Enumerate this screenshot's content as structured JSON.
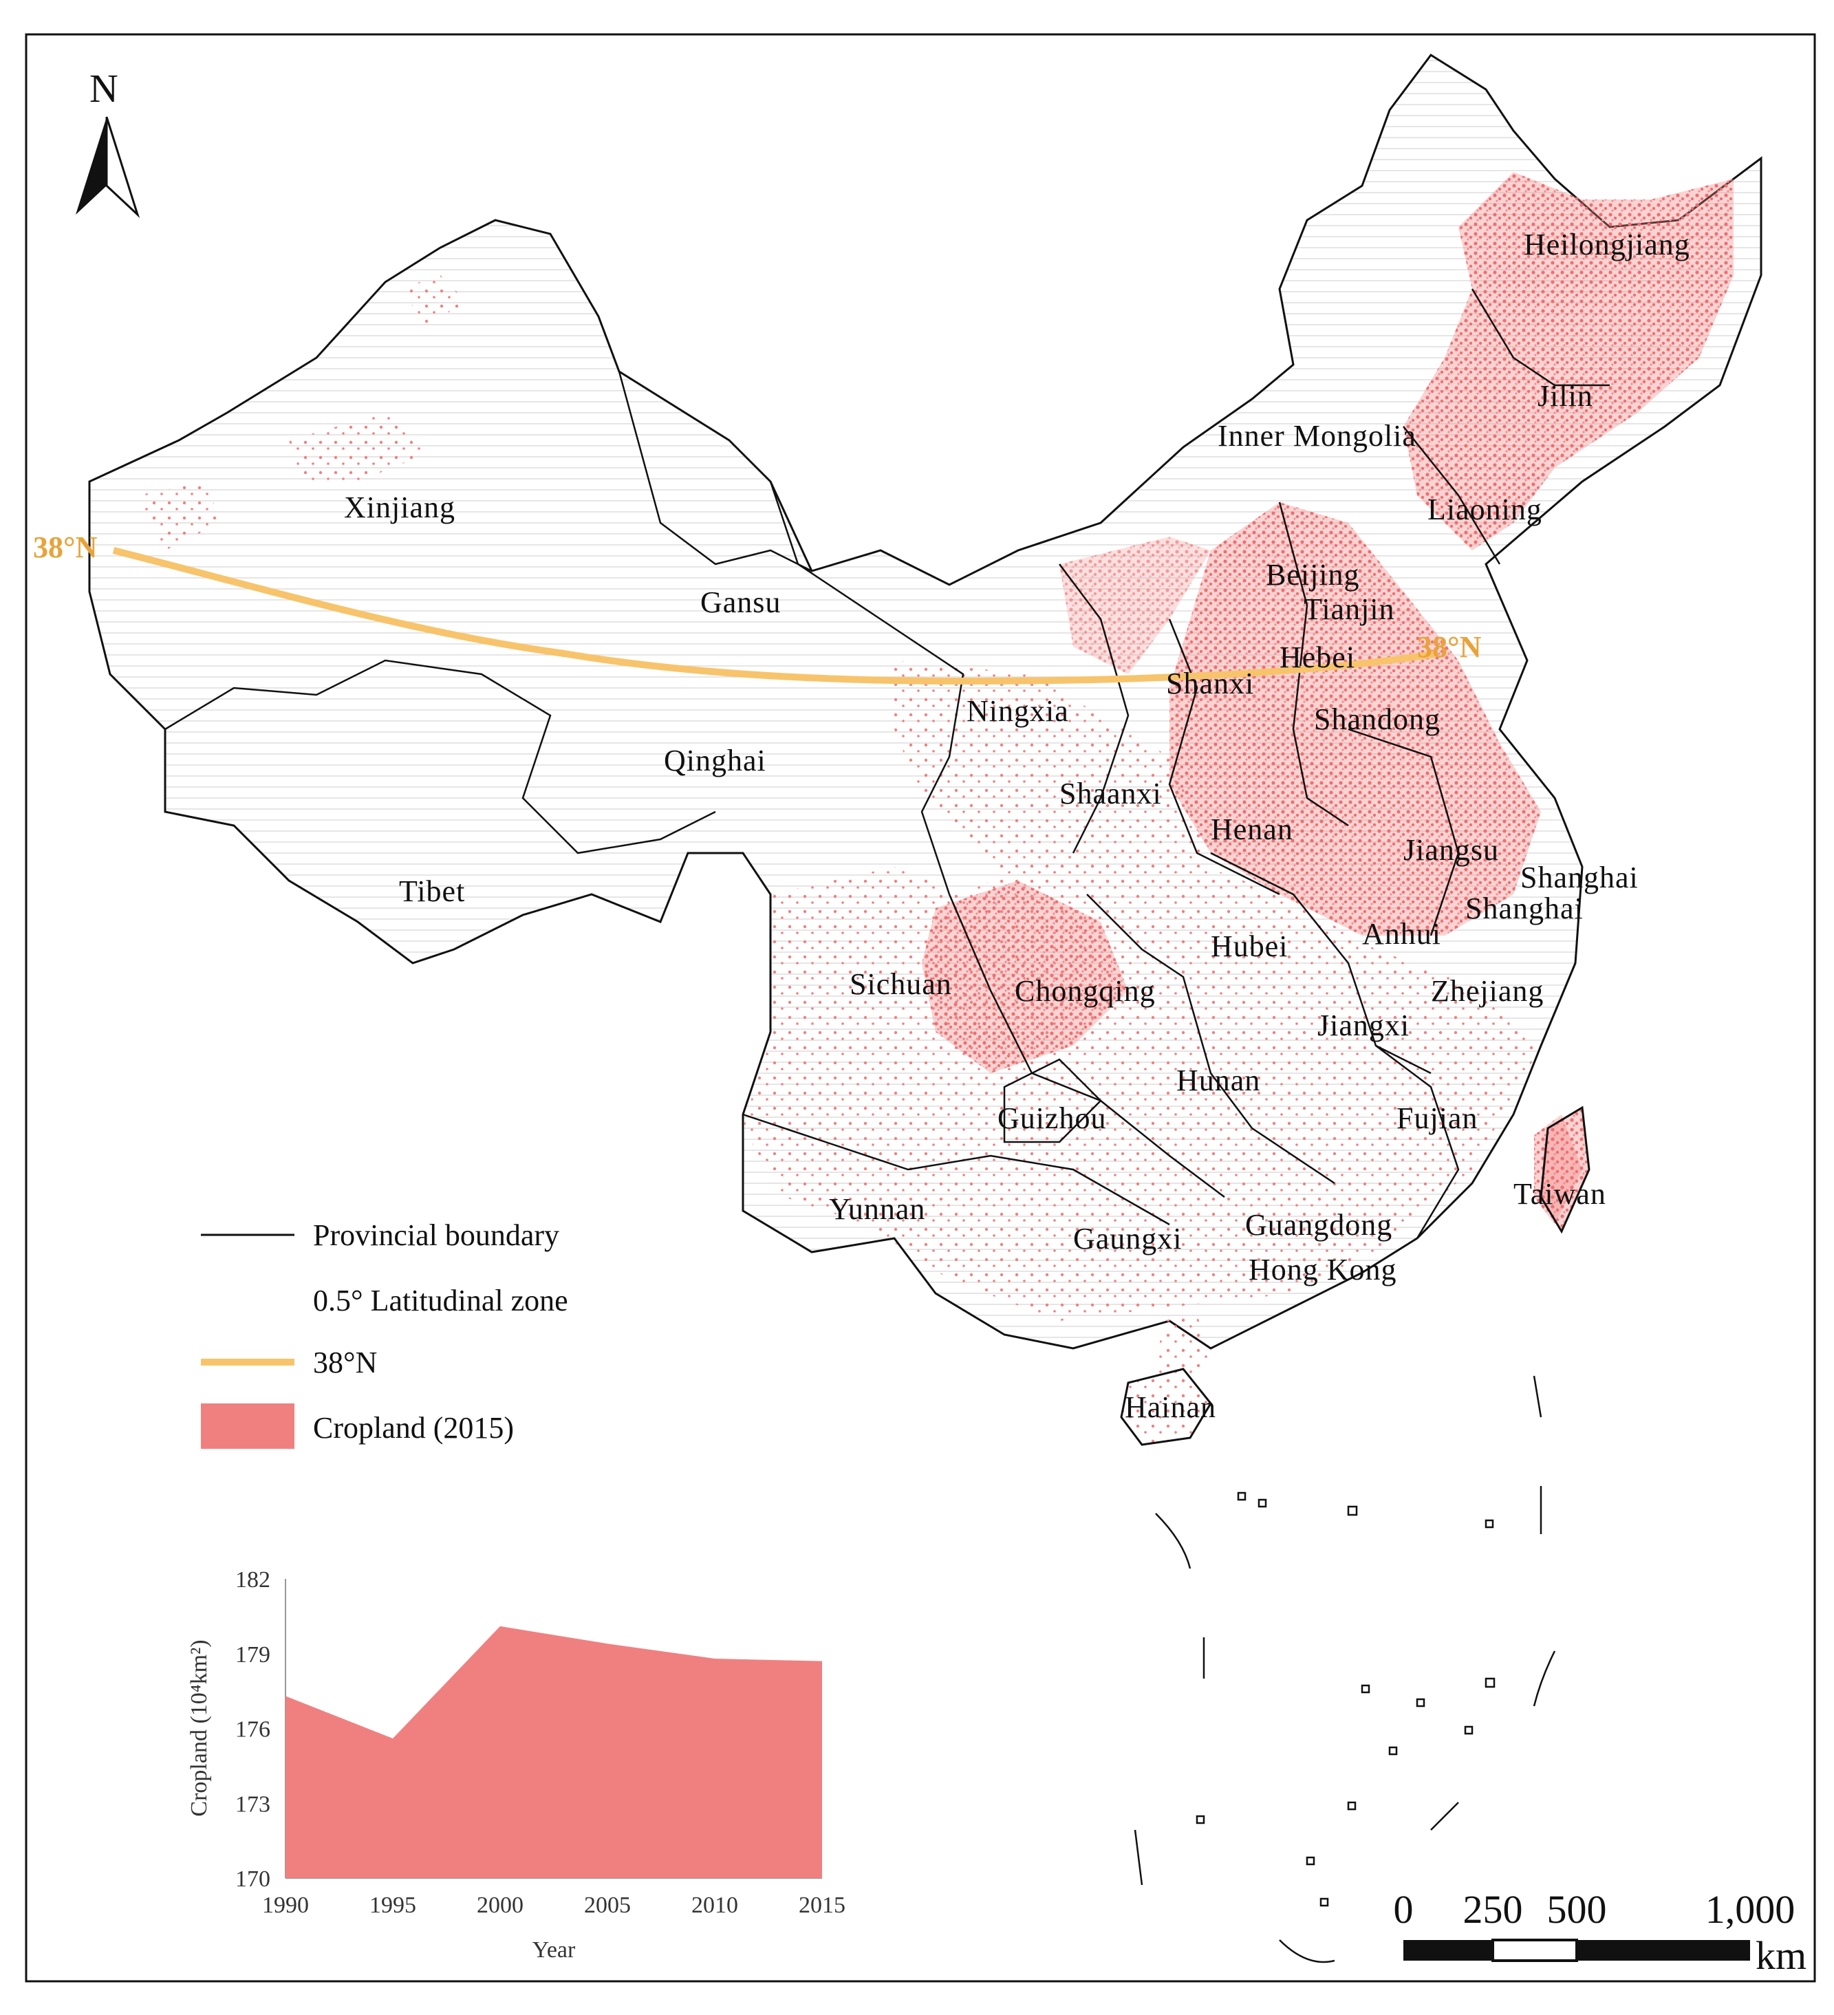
{
  "north_arrow": {
    "label": "N"
  },
  "latitude_line": {
    "left_label": "38°N",
    "right_label": "38°N",
    "color": "#F7C46C"
  },
  "colors": {
    "cropland": "#F08080",
    "boundary": "#111111",
    "zone": "#d9d9d9"
  },
  "provinces": [
    {
      "name": "Heilongjiang"
    },
    {
      "name": "Jilin"
    },
    {
      "name": "Inner Mongolia"
    },
    {
      "name": "Liaoning"
    },
    {
      "name": "Xinjiang"
    },
    {
      "name": "Beijing"
    },
    {
      "name": "Tianjin"
    },
    {
      "name": "Gansu"
    },
    {
      "name": "Hebei"
    },
    {
      "name": "Shanxi"
    },
    {
      "name": "Ningxia"
    },
    {
      "name": "Shandong"
    },
    {
      "name": "Qinghai"
    },
    {
      "name": "Shaanxi"
    },
    {
      "name": "Henan"
    },
    {
      "name": "Jiangsu"
    },
    {
      "name": "Shanghai"
    },
    {
      "name": "Shanghai"
    },
    {
      "name": "Tibet"
    },
    {
      "name": "Anhui"
    },
    {
      "name": "Hubei"
    },
    {
      "name": "Sichuan"
    },
    {
      "name": "Chongqing"
    },
    {
      "name": "Zhejiang"
    },
    {
      "name": "Jiangxi"
    },
    {
      "name": "Hunan"
    },
    {
      "name": "Guizhou"
    },
    {
      "name": "Fujian"
    },
    {
      "name": "Taiwan"
    },
    {
      "name": "Yunnan"
    },
    {
      "name": "Gaungxi"
    },
    {
      "name": "Guangdong"
    },
    {
      "name": "Hong Kong"
    },
    {
      "name": "Hainan"
    }
  ],
  "legend": {
    "items": [
      {
        "label": "Provincial boundary",
        "symbol": "line"
      },
      {
        "label": "0.5° Latitudinal zone",
        "symbol": "none"
      },
      {
        "label": "38°N",
        "symbol": "thick-line"
      },
      {
        "label": "Cropland (2015)",
        "symbol": "box"
      }
    ]
  },
  "chart_data": {
    "type": "area",
    "x": [
      1990,
      1995,
      2000,
      2005,
      2010,
      2015
    ],
    "values": [
      177.3,
      175.6,
      180.1,
      179.4,
      178.8,
      178.7
    ],
    "xlabel": "Year",
    "ylabel": "Cropland (10⁴km²)",
    "ylim": [
      170,
      182
    ],
    "yticks": [
      170,
      173,
      176,
      179,
      182
    ],
    "xticks": [
      1990,
      1995,
      2000,
      2005,
      2010,
      2015
    ],
    "tick_labels_y": [
      "170",
      "173",
      "176",
      "179",
      "182"
    ],
    "tick_labels_x": [
      "1990",
      "1995",
      "2000",
      "2005",
      "2010",
      "2015"
    ],
    "fill_color": "#F08080",
    "grid": false
  },
  "scale_bar": {
    "ticks": [
      0,
      250,
      500,
      1000
    ],
    "tick_labels": [
      "0",
      "250",
      "500",
      "1,000"
    ],
    "unit": "km"
  }
}
